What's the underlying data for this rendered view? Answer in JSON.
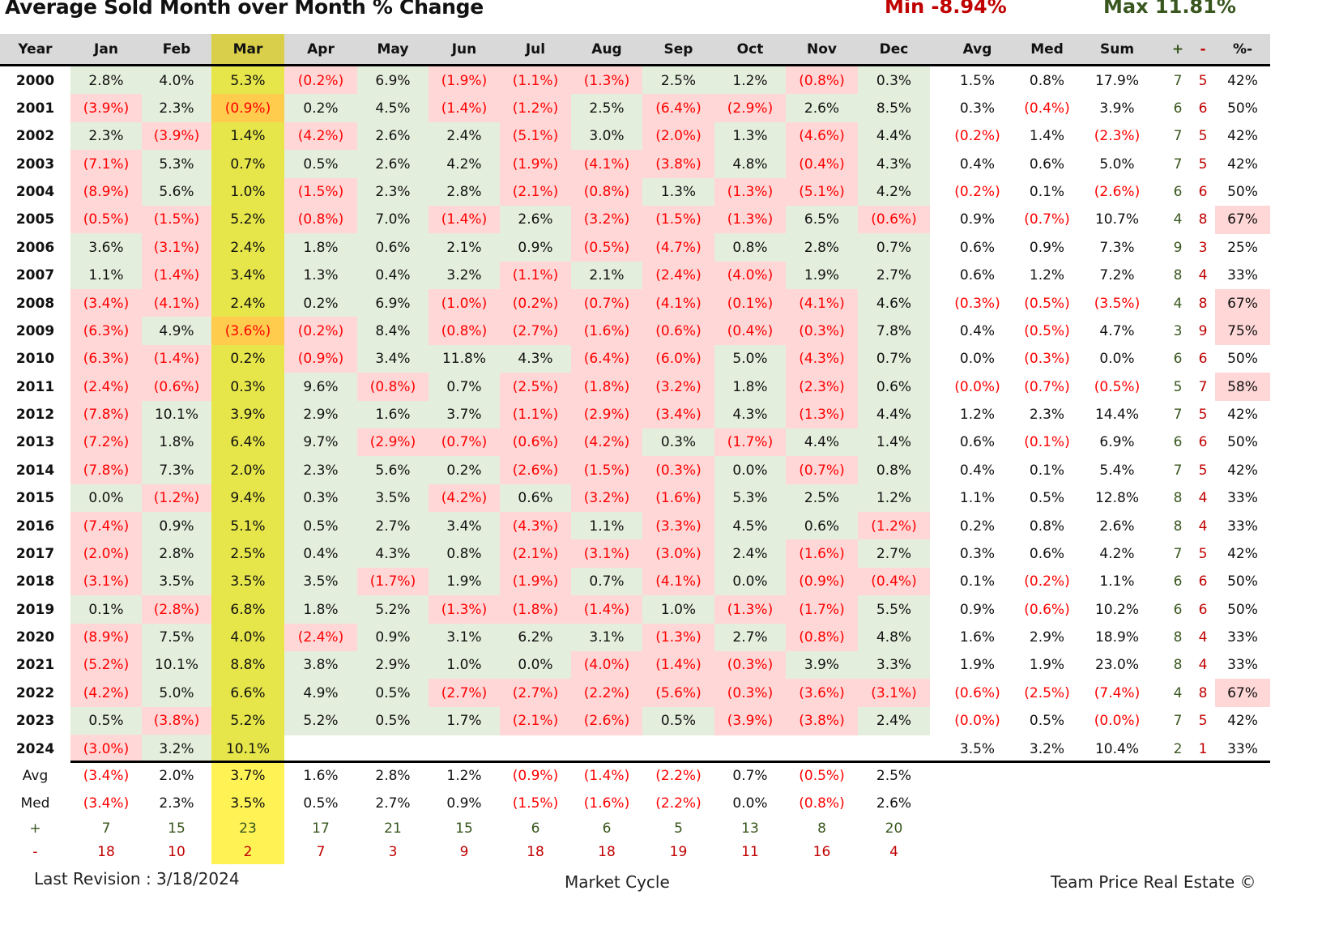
{
  "title": "Average Sold Month over Month % Change",
  "min_label": "Min -8.94%",
  "max_label": "Max 11.81%",
  "colors": {
    "positive_bg": "#e4eedc",
    "negative_bg": "#ffd7d7",
    "march_bg": "#e6e64a",
    "march_header_bg": "#d9cf4a",
    "march_negative_bg": "#ffcc4d",
    "march_summary_bg": "#fff255",
    "negative_text": "#ff0000",
    "plus_text": "#38561d",
    "minus_text": "#c00000"
  },
  "headers": [
    "Year",
    "Jan",
    "Feb",
    "Mar",
    "Apr",
    "May",
    "Jun",
    "Jul",
    "Aug",
    "Sep",
    "Oct",
    "Nov",
    "Dec",
    "Avg",
    "Med",
    "Sum",
    "+",
    "-",
    "%-"
  ],
  "rows": [
    [
      "2000",
      "2.8%",
      "4.0%",
      "5.3%",
      "(0.2%)",
      "6.9%",
      "(1.9%)",
      "(1.1%)",
      "(1.3%)",
      "2.5%",
      "1.2%",
      "(0.8%)",
      "0.3%",
      "1.5%",
      "0.8%",
      "17.9%",
      "7",
      "5",
      "42%"
    ],
    [
      "2001",
      "(3.9%)",
      "2.3%",
      "(0.9%)",
      "0.2%",
      "4.5%",
      "(1.4%)",
      "(1.2%)",
      "2.5%",
      "(6.4%)",
      "(2.9%)",
      "2.6%",
      "8.5%",
      "0.3%",
      "(0.4%)",
      "3.9%",
      "6",
      "6",
      "50%"
    ],
    [
      "2002",
      "2.3%",
      "(3.9%)",
      "1.4%",
      "(4.2%)",
      "2.6%",
      "2.4%",
      "(5.1%)",
      "3.0%",
      "(2.0%)",
      "1.3%",
      "(4.6%)",
      "4.4%",
      "(0.2%)",
      "1.4%",
      "(2.3%)",
      "7",
      "5",
      "42%"
    ],
    [
      "2003",
      "(7.1%)",
      "5.3%",
      "0.7%",
      "0.5%",
      "2.6%",
      "4.2%",
      "(1.9%)",
      "(4.1%)",
      "(3.8%)",
      "4.8%",
      "(0.4%)",
      "4.3%",
      "0.4%",
      "0.6%",
      "5.0%",
      "7",
      "5",
      "42%"
    ],
    [
      "2004",
      "(8.9%)",
      "5.6%",
      "1.0%",
      "(1.5%)",
      "2.3%",
      "2.8%",
      "(2.1%)",
      "(0.8%)",
      "1.3%",
      "(1.3%)",
      "(5.1%)",
      "4.2%",
      "(0.2%)",
      "0.1%",
      "(2.6%)",
      "6",
      "6",
      "50%"
    ],
    [
      "2005",
      "(0.5%)",
      "(1.5%)",
      "5.2%",
      "(0.8%)",
      "7.0%",
      "(1.4%)",
      "2.6%",
      "(3.2%)",
      "(1.5%)",
      "(1.3%)",
      "6.5%",
      "(0.6%)",
      "0.9%",
      "(0.7%)",
      "10.7%",
      "4",
      "8",
      "67%"
    ],
    [
      "2006",
      "3.6%",
      "(3.1%)",
      "2.4%",
      "1.8%",
      "0.6%",
      "2.1%",
      "0.9%",
      "(0.5%)",
      "(4.7%)",
      "0.8%",
      "2.8%",
      "0.7%",
      "0.6%",
      "0.9%",
      "7.3%",
      "9",
      "3",
      "25%"
    ],
    [
      "2007",
      "1.1%",
      "(1.4%)",
      "3.4%",
      "1.3%",
      "0.4%",
      "3.2%",
      "(1.1%)",
      "2.1%",
      "(2.4%)",
      "(4.0%)",
      "1.9%",
      "2.7%",
      "0.6%",
      "1.2%",
      "7.2%",
      "8",
      "4",
      "33%"
    ],
    [
      "2008",
      "(3.4%)",
      "(4.1%)",
      "2.4%",
      "0.2%",
      "6.9%",
      "(1.0%)",
      "(0.2%)",
      "(0.7%)",
      "(4.1%)",
      "(0.1%)",
      "(4.1%)",
      "4.6%",
      "(0.3%)",
      "(0.5%)",
      "(3.5%)",
      "4",
      "8",
      "67%"
    ],
    [
      "2009",
      "(6.3%)",
      "4.9%",
      "(3.6%)",
      "(0.2%)",
      "8.4%",
      "(0.8%)",
      "(2.7%)",
      "(1.6%)",
      "(0.6%)",
      "(0.4%)",
      "(0.3%)",
      "7.8%",
      "0.4%",
      "(0.5%)",
      "4.7%",
      "3",
      "9",
      "75%"
    ],
    [
      "2010",
      "(6.3%)",
      "(1.4%)",
      "0.2%",
      "(0.9%)",
      "3.4%",
      "11.8%",
      "4.3%",
      "(6.4%)",
      "(6.0%)",
      "5.0%",
      "(4.3%)",
      "0.7%",
      "0.0%",
      "(0.3%)",
      "0.0%",
      "6",
      "6",
      "50%"
    ],
    [
      "2011",
      "(2.4%)",
      "(0.6%)",
      "0.3%",
      "9.6%",
      "(0.8%)",
      "0.7%",
      "(2.5%)",
      "(1.8%)",
      "(3.2%)",
      "1.8%",
      "(2.3%)",
      "0.6%",
      "(0.0%)",
      "(0.7%)",
      "(0.5%)",
      "5",
      "7",
      "58%"
    ],
    [
      "2012",
      "(7.8%)",
      "10.1%",
      "3.9%",
      "2.9%",
      "1.6%",
      "3.7%",
      "(1.1%)",
      "(2.9%)",
      "(3.4%)",
      "4.3%",
      "(1.3%)",
      "4.4%",
      "1.2%",
      "2.3%",
      "14.4%",
      "7",
      "5",
      "42%"
    ],
    [
      "2013",
      "(7.2%)",
      "1.8%",
      "6.4%",
      "9.7%",
      "(2.9%)",
      "(0.7%)",
      "(0.6%)",
      "(4.2%)",
      "0.3%",
      "(1.7%)",
      "4.4%",
      "1.4%",
      "0.6%",
      "(0.1%)",
      "6.9%",
      "6",
      "6",
      "50%"
    ],
    [
      "2014",
      "(7.8%)",
      "7.3%",
      "2.0%",
      "2.3%",
      "5.6%",
      "0.2%",
      "(2.6%)",
      "(1.5%)",
      "(0.3%)",
      "0.0%",
      "(0.7%)",
      "0.8%",
      "0.4%",
      "0.1%",
      "5.4%",
      "7",
      "5",
      "42%"
    ],
    [
      "2015",
      "0.0%",
      "(1.2%)",
      "9.4%",
      "0.3%",
      "3.5%",
      "(4.2%)",
      "0.6%",
      "(3.2%)",
      "(1.6%)",
      "5.3%",
      "2.5%",
      "1.2%",
      "1.1%",
      "0.5%",
      "12.8%",
      "8",
      "4",
      "33%"
    ],
    [
      "2016",
      "(7.4%)",
      "0.9%",
      "5.1%",
      "0.5%",
      "2.7%",
      "3.4%",
      "(4.3%)",
      "1.1%",
      "(3.3%)",
      "4.5%",
      "0.6%",
      "(1.2%)",
      "0.2%",
      "0.8%",
      "2.6%",
      "8",
      "4",
      "33%"
    ],
    [
      "2017",
      "(2.0%)",
      "2.8%",
      "2.5%",
      "0.4%",
      "4.3%",
      "0.8%",
      "(2.1%)",
      "(3.1%)",
      "(3.0%)",
      "2.4%",
      "(1.6%)",
      "2.7%",
      "0.3%",
      "0.6%",
      "4.2%",
      "7",
      "5",
      "42%"
    ],
    [
      "2018",
      "(3.1%)",
      "3.5%",
      "3.5%",
      "3.5%",
      "(1.7%)",
      "1.9%",
      "(1.9%)",
      "0.7%",
      "(4.1%)",
      "0.0%",
      "(0.9%)",
      "(0.4%)",
      "0.1%",
      "(0.2%)",
      "1.1%",
      "6",
      "6",
      "50%"
    ],
    [
      "2019",
      "0.1%",
      "(2.8%)",
      "6.8%",
      "1.8%",
      "5.2%",
      "(1.3%)",
      "(1.8%)",
      "(1.4%)",
      "1.0%",
      "(1.3%)",
      "(1.7%)",
      "5.5%",
      "0.9%",
      "(0.6%)",
      "10.2%",
      "6",
      "6",
      "50%"
    ],
    [
      "2020",
      "(8.9%)",
      "7.5%",
      "4.0%",
      "(2.4%)",
      "0.9%",
      "3.1%",
      "6.2%",
      "3.1%",
      "(1.3%)",
      "2.7%",
      "(0.8%)",
      "4.8%",
      "1.6%",
      "2.9%",
      "18.9%",
      "8",
      "4",
      "33%"
    ],
    [
      "2021",
      "(5.2%)",
      "10.1%",
      "8.8%",
      "3.8%",
      "2.9%",
      "1.0%",
      "0.0%",
      "(4.0%)",
      "(1.4%)",
      "(0.3%)",
      "3.9%",
      "3.3%",
      "1.9%",
      "1.9%",
      "23.0%",
      "8",
      "4",
      "33%"
    ],
    [
      "2022",
      "(4.2%)",
      "5.0%",
      "6.6%",
      "4.9%",
      "0.5%",
      "(2.7%)",
      "(2.7%)",
      "(2.2%)",
      "(5.6%)",
      "(0.3%)",
      "(3.6%)",
      "(3.1%)",
      "(0.6%)",
      "(2.5%)",
      "(7.4%)",
      "4",
      "8",
      "67%"
    ],
    [
      "2023",
      "0.5%",
      "(3.8%)",
      "5.2%",
      "5.2%",
      "0.5%",
      "1.7%",
      "(2.1%)",
      "(2.6%)",
      "0.5%",
      "(3.9%)",
      "(3.8%)",
      "2.4%",
      "(0.0%)",
      "0.5%",
      "(0.0%)",
      "7",
      "5",
      "42%"
    ],
    [
      "2024",
      "(3.0%)",
      "3.2%",
      "10.1%",
      "",
      "",
      "",
      "",
      "",
      "",
      "",
      "",
      "",
      "3.5%",
      "3.2%",
      "10.4%",
      "2",
      "1",
      "33%"
    ]
  ],
  "summary": [
    [
      "Avg",
      "(3.4%)",
      "2.0%",
      "3.7%",
      "1.6%",
      "2.8%",
      "1.2%",
      "(0.9%)",
      "(1.4%)",
      "(2.2%)",
      "0.7%",
      "(0.5%)",
      "2.5%"
    ],
    [
      "Med",
      "(3.4%)",
      "2.3%",
      "3.5%",
      "0.5%",
      "2.7%",
      "0.9%",
      "(1.5%)",
      "(1.6%)",
      "(2.2%)",
      "0.0%",
      "(0.8%)",
      "2.6%"
    ],
    [
      "+",
      "7",
      "15",
      "23",
      "17",
      "21",
      "15",
      "6",
      "6",
      "5",
      "13",
      "8",
      "20"
    ],
    [
      "-",
      "18",
      "10",
      "2",
      "7",
      "3",
      "9",
      "18",
      "18",
      "19",
      "11",
      "16",
      "4"
    ]
  ],
  "footer": {
    "revision": "Last Revision : 3/18/2024",
    "center": "Market Cycle",
    "right": "Team Price Real Estate ©"
  }
}
